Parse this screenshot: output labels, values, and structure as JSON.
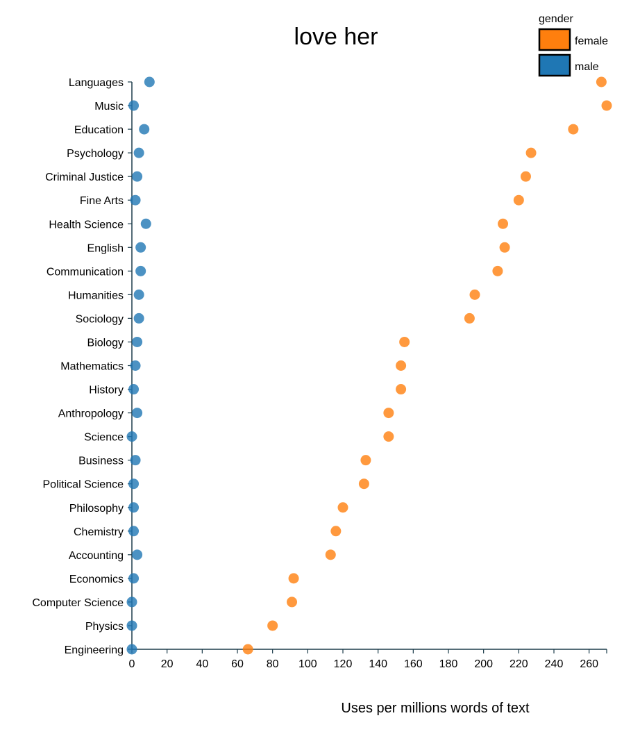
{
  "chart_data": {
    "type": "scatter",
    "title": "love her",
    "xlabel": "Uses per millions words of text",
    "ylabel": "",
    "xlim": [
      0,
      270
    ],
    "x_ticks": [
      0,
      20,
      40,
      60,
      80,
      100,
      120,
      140,
      160,
      180,
      200,
      220,
      240,
      260
    ],
    "categories": [
      "Languages",
      "Music",
      "Education",
      "Psychology",
      "Criminal Justice",
      "Fine Arts",
      "Health Science",
      "English",
      "Communication",
      "Humanities",
      "Sociology",
      "Biology",
      "Mathematics",
      "History",
      "Anthropology",
      "Science",
      "Business",
      "Political Science",
      "Philosophy",
      "Chemistry",
      "Accounting",
      "Economics",
      "Computer Science",
      "Physics",
      "Engineering"
    ],
    "legend": {
      "title": "gender",
      "position": "top-right"
    },
    "series": [
      {
        "name": "female",
        "color": "#ff7f0e",
        "values": [
          267,
          270,
          251,
          227,
          224,
          220,
          211,
          212,
          208,
          195,
          192,
          155,
          153,
          153,
          146,
          146,
          133,
          132,
          120,
          116,
          113,
          92,
          91,
          80,
          66
        ]
      },
      {
        "name": "male",
        "color": "#1f77b4",
        "values": [
          10,
          1,
          7,
          4,
          3,
          2,
          8,
          5,
          5,
          4,
          4,
          3,
          2,
          1,
          3,
          0,
          2,
          1,
          1,
          1,
          3,
          1,
          0,
          0,
          0
        ]
      }
    ]
  }
}
